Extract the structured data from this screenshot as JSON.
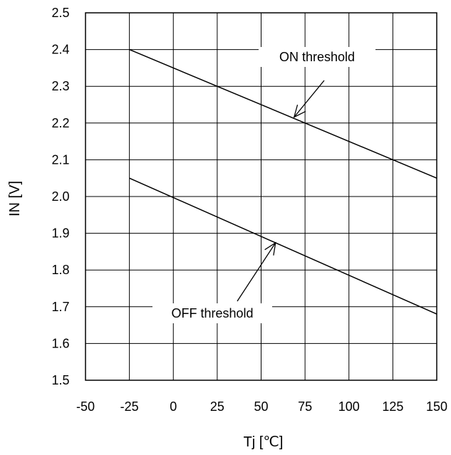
{
  "chart_data": {
    "type": "line",
    "title": "",
    "xlabel": "Tj  [℃]",
    "ylabel": "IN  [V]",
    "xlim": [
      -50,
      150
    ],
    "ylim": [
      1.5,
      2.5
    ],
    "x_ticks": [
      "-50",
      "-25",
      "0",
      "25",
      "50",
      "75",
      "100",
      "125",
      "150"
    ],
    "y_ticks": [
      "1.5",
      "1.6",
      "1.7",
      "1.8",
      "1.9",
      "2.0",
      "2.1",
      "2.2",
      "2.3",
      "2.4",
      "2.5"
    ],
    "grid": true,
    "series": [
      {
        "name": "ON threshold",
        "x": [
          -25,
          150
        ],
        "y": [
          2.4,
          2.05
        ]
      },
      {
        "name": "OFF threshold",
        "x": [
          -25,
          150
        ],
        "y": [
          2.05,
          1.68
        ]
      }
    ],
    "annotations": [
      {
        "text": "ON threshold",
        "points_to": [
          70,
          2.22
        ]
      },
      {
        "text": "OFF threshold",
        "points_to": [
          57,
          1.88
        ]
      }
    ],
    "line_color": "#000000",
    "grid_color": "#000000"
  }
}
